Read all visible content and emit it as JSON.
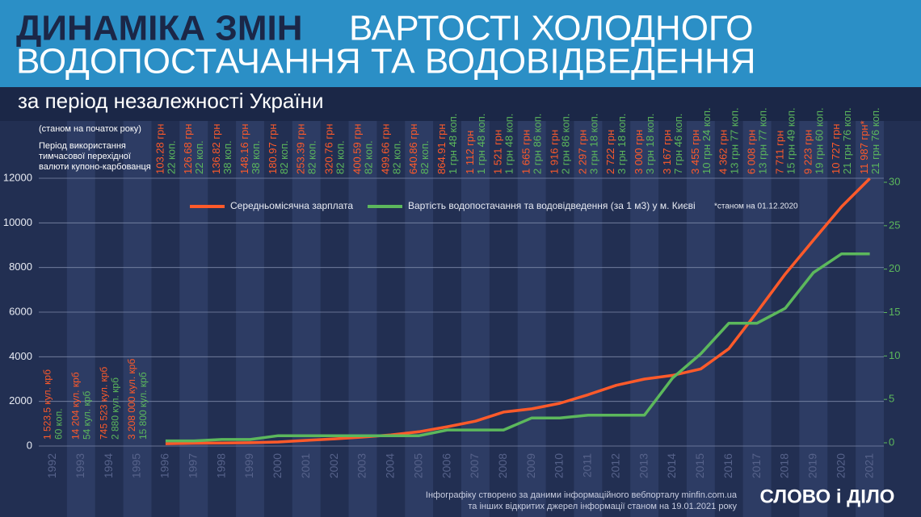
{
  "chart_data": {
    "type": "line",
    "title": [
      "ДИНАМІКА ЗМІН",
      "ВАРТОСТІ ХОЛОДНОГО",
      "ВОДОПОСТАЧАННЯ ТА ВОДОВІДВЕДЕННЯ"
    ],
    "subtitle": "за період незалежності України",
    "notes": [
      "(станом на початок року)",
      "Період використання",
      "тимчасової перехідної",
      "валюти купоно-карбованця"
    ],
    "categories": [
      "1992",
      "1993",
      "1994",
      "1995",
      "1996",
      "1997",
      "1998",
      "1999",
      "2000",
      "2001",
      "2002",
      "2003",
      "2004",
      "2005",
      "2006",
      "2007",
      "2008",
      "2009",
      "2010",
      "2011",
      "2012",
      "2013",
      "2014",
      "2015",
      "2016",
      "2017",
      "2018",
      "2019",
      "2020",
      "2021"
    ],
    "series": [
      {
        "name": "Середньомісячна зарплата",
        "color": "#ff5a2a",
        "values": [
          null,
          null,
          null,
          null,
          103.28,
          126.68,
          136.82,
          148.16,
          180.97,
          253.39,
          320.76,
          400.59,
          499.66,
          640.86,
          864.91,
          1112,
          1521,
          1665,
          1916,
          2297,
          2722,
          3000,
          3167,
          3455,
          4362,
          6008,
          7711,
          9223,
          10727,
          11987
        ],
        "value_labels": [
          "1 523,5 кул. крб",
          "14 204 кул. крб",
          "745 523 кул. крб",
          "3 208 000 кул. крб",
          "103.28 грн",
          "126.68 грн",
          "136.82 грн",
          "148.16 грн",
          "180.97 грн",
          "253.39 грн",
          "320.76 грн",
          "400.59 грн",
          "499.66 грн",
          "640.86 грн",
          "864.91 грн",
          "1 112 грн",
          "1 521 грн",
          "1 665 грн",
          "1 916 грн",
          "2 297 грн",
          "2 722 грн",
          "3 000 грн",
          "3 167 грн",
          "3 455 грн",
          "4 362 грн",
          "6 008 грн",
          "7 711 грн",
          "9 223 грн",
          "10 727 грн",
          "11 987 грн*"
        ]
      },
      {
        "name": "Вартість водопостачання та водовідведення (за 1 м3) у м. Києві",
        "color": "#5cb85c",
        "axis": "y2",
        "values": [
          null,
          null,
          null,
          null,
          0.22,
          0.22,
          0.38,
          0.38,
          0.82,
          0.82,
          0.82,
          0.82,
          0.82,
          0.82,
          1.48,
          1.48,
          1.48,
          2.86,
          2.86,
          3.18,
          3.18,
          3.18,
          7.46,
          10.24,
          13.77,
          13.77,
          15.49,
          19.6,
          21.76,
          21.76
        ],
        "value_labels": [
          "60 коп.",
          "54 кул. крб",
          "2 880 кул. крб",
          "15 800 кул. крб",
          "22 коп.",
          "22 коп.",
          "38 коп.",
          "38 коп.",
          "82 коп.",
          "82 коп.",
          "82 коп.",
          "82 коп.",
          "82 коп.",
          "82 коп.",
          "1 грн 48 коп.",
          "1 грн 48 коп.",
          "1 грн 48 коп.",
          "2 грн 86 коп.",
          "2 грн 86 коп.",
          "3 грн 18 коп.",
          "3 грн 18 коп.",
          "3 грн 18 коп.",
          "7 грн 46 коп.",
          "10 грн 24 коп.",
          "13 грн 77 коп.",
          "13 грн 77 коп.",
          "15 грн 49 коп.",
          "19 грн 60 коп.",
          "21 грн 76 коп.",
          "21 грн 76 коп."
        ]
      }
    ],
    "legend_note": "*станом на 01.12.2020",
    "ylim": [
      0,
      12000
    ],
    "yticks": [
      0,
      2000,
      4000,
      6000,
      8000,
      10000,
      12000
    ],
    "y2lim": [
      0,
      30
    ],
    "y2ticks": [
      0,
      5,
      10,
      15,
      20,
      25,
      30
    ],
    "grid": true,
    "source": [
      "Інфографіку створено за даними інформаційного вебпорталу minfin.com.ua",
      "та інших відкритих джерел інформації станом на 19.01.2021 року"
    ],
    "logo": "СЛОВО і ДІЛО"
  }
}
